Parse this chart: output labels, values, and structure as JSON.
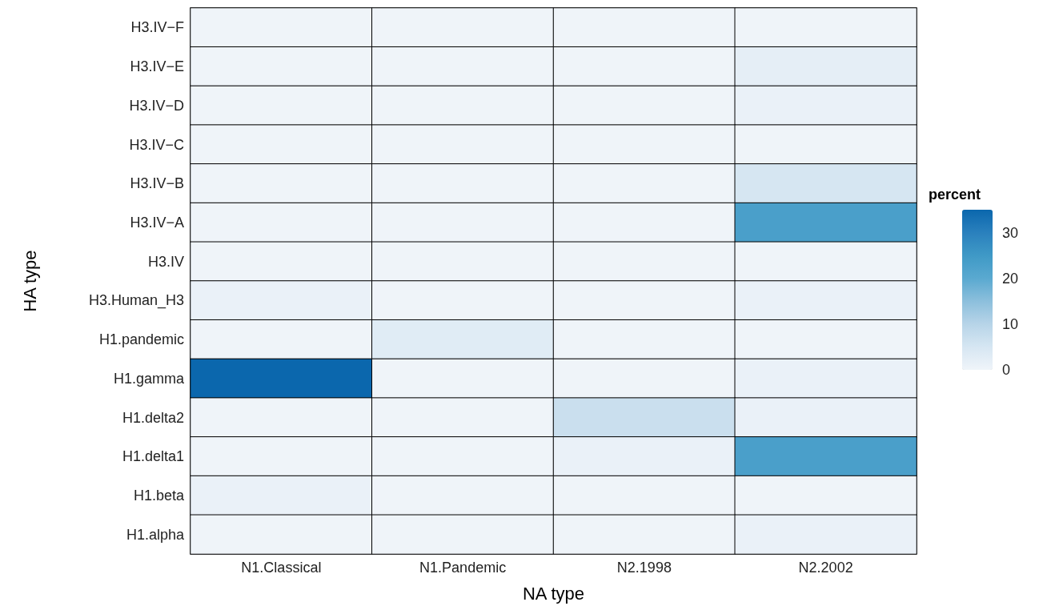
{
  "chart_data": {
    "type": "heatmap",
    "xlabel": "NA type",
    "ylabel": "HA type",
    "clabel": "percent",
    "categories": [
      "N1.Classical",
      "N1.Pandemic",
      "N2.1998",
      "N2.2002"
    ],
    "y_categories": [
      "H3.IV−F",
      "H3.IV−E",
      "H3.IV−D",
      "H3.IV−C",
      "H3.IV−B",
      "H3.IV−A",
      "H3.IV",
      "H3.Human_H3",
      "H1.pandemic",
      "H1.gamma",
      "H1.delta2",
      "H1.delta1",
      "H1.beta",
      "H1.alpha"
    ],
    "cells": [
      [
        0,
        0,
        0,
        0
      ],
      [
        0,
        0,
        0,
        2
      ],
      [
        0,
        0,
        0,
        1
      ],
      [
        0,
        0,
        0,
        0
      ],
      [
        0,
        0,
        0,
        5
      ],
      [
        0,
        0,
        0,
        23
      ],
      [
        0,
        0,
        0,
        0
      ],
      [
        1,
        0,
        0,
        1
      ],
      [
        0,
        3,
        0,
        0
      ],
      [
        35,
        0,
        0,
        1
      ],
      [
        0,
        0,
        7,
        1
      ],
      [
        0,
        0,
        1,
        23
      ],
      [
        1,
        0,
        0,
        0
      ],
      [
        0,
        0,
        0,
        1
      ]
    ],
    "clim": [
      0,
      35
    ],
    "cticks": [
      0,
      10,
      20,
      30
    ]
  }
}
